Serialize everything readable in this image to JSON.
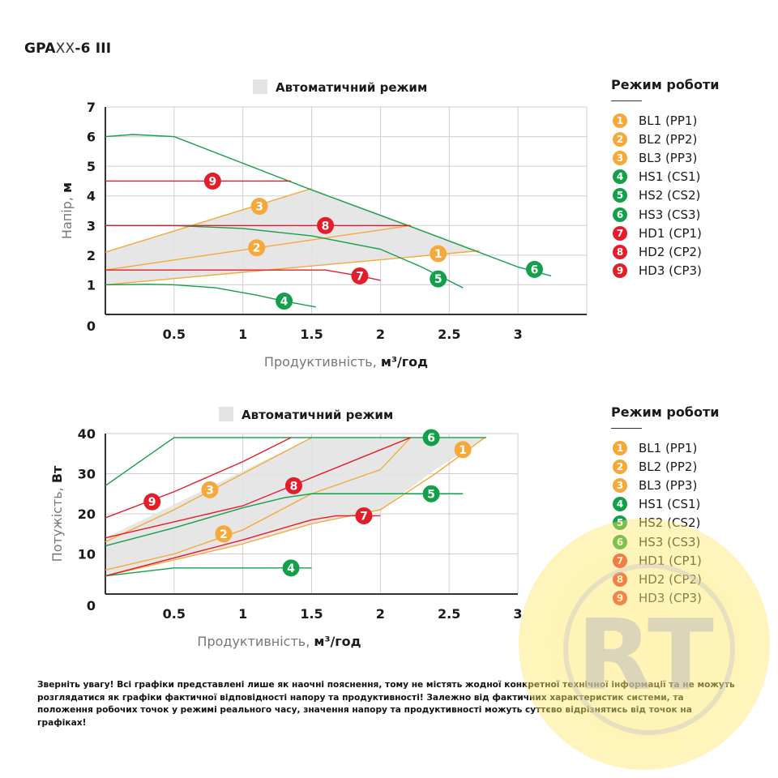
{
  "title": {
    "bold_prefix": "GPA",
    "thin_mid": "XX",
    "bold_suffix": "-6 III"
  },
  "legend": {
    "heading": "Режим роботи",
    "items": [
      {
        "num": "1",
        "label": "BL1 (PP1)",
        "color": "#F5A93A"
      },
      {
        "num": "2",
        "label": "BL2 (PP2)",
        "color": "#F5A93A"
      },
      {
        "num": "3",
        "label": "BL3 (PP3)",
        "color": "#F5A93A"
      },
      {
        "num": "4",
        "label": "HS1 (CS1)",
        "color": "#13A04A"
      },
      {
        "num": "5",
        "label": "HS2 (CS2)",
        "color": "#13A04A"
      },
      {
        "num": "6",
        "label": "HS3 (CS3)",
        "color": "#13A04A"
      },
      {
        "num": "7",
        "label": "HD1 (CP1)",
        "color": "#E31E2A"
      },
      {
        "num": "8",
        "label": "HD2 (CP2)",
        "color": "#E31E2A"
      },
      {
        "num": "9",
        "label": "HD3 (CP3)",
        "color": "#E31E2A"
      }
    ]
  },
  "notice": "Зверніть увагу! Всі графіки представлені лише як наочні пояснення, тому не містять жодної конкретної технічної інформації та не можуть розглядатися як графіки фактичної відповідності напору та продуктивності! Залежно від фактичних характеристик системи, та положення робочих точок у режимі реального часу, значення напору та продуктивності можуть суттєво відрізнятись від точок на графіках!",
  "colors": {
    "orange": "#F5A93A",
    "green": "#13A04A",
    "red": "#E31E2A",
    "auto_zone": "#E3E3E3",
    "grid": "#CFCFCF",
    "axis": "#333333"
  },
  "chart_data": [
    {
      "type": "line",
      "title": "Автоматичний режим",
      "legend_swatch_label": "Автоматичний режим",
      "xlabel_regular": "Продуктивність, ",
      "xlabel_bold": "м³/год",
      "ylabel_regular": "Напір, ",
      "ylabel_bold": "м",
      "xlim": [
        0,
        3.5
      ],
      "ylim": [
        0,
        7
      ],
      "xticks": [
        "0.5",
        "1",
        "1.5",
        "2",
        "2.5",
        "3"
      ],
      "xtick_values": [
        0.5,
        1,
        1.5,
        2,
        2.5,
        3
      ],
      "yticks": [
        "1",
        "2",
        "3",
        "4",
        "5",
        "6",
        "7"
      ],
      "ytick_values": [
        1,
        2,
        3,
        4,
        5,
        6,
        7
      ],
      "origin_label": "0",
      "grid": true,
      "auto_zone": [
        [
          0,
          1.0
        ],
        [
          0,
          2.1
        ],
        [
          1.5,
          4.25
        ],
        [
          2.22,
          3.0
        ],
        [
          2.72,
          2.15
        ],
        [
          0,
          1.0
        ]
      ],
      "series": [
        {
          "name": "BL1 (PP1)",
          "num": "1",
          "group": "orange",
          "points": [
            [
              0,
              1.0
            ],
            [
              2.72,
              2.15
            ]
          ],
          "marker": [
            2.42,
            2.05
          ]
        },
        {
          "name": "BL2 (PP2)",
          "num": "2",
          "group": "orange",
          "points": [
            [
              0,
              1.5
            ],
            [
              2.22,
              3.0
            ]
          ],
          "marker": [
            1.1,
            2.25
          ]
        },
        {
          "name": "BL3 (PP3)",
          "num": "3",
          "group": "orange",
          "points": [
            [
              0,
              2.1
            ],
            [
              1.5,
              4.25
            ]
          ],
          "marker": [
            1.12,
            3.65
          ]
        },
        {
          "name": "HS1 (CS1)",
          "num": "4",
          "group": "green",
          "points": [
            [
              0,
              1.0
            ],
            [
              0.3,
              1.02
            ],
            [
              0.5,
              1.0
            ],
            [
              0.8,
              0.9
            ],
            [
              1.1,
              0.65
            ],
            [
              1.3,
              0.45
            ],
            [
              1.53,
              0.25
            ]
          ],
          "marker": [
            1.3,
            0.45
          ]
        },
        {
          "name": "HS2 (CS2)",
          "num": "5",
          "group": "green",
          "points": [
            [
              0,
              3.0
            ],
            [
              0.5,
              3.0
            ],
            [
              1.0,
              2.9
            ],
            [
              1.5,
              2.65
            ],
            [
              2.0,
              2.2
            ],
            [
              2.3,
              1.6
            ],
            [
              2.6,
              0.9
            ]
          ],
          "marker": [
            2.42,
            1.2
          ]
        },
        {
          "name": "HS3 (CS3)",
          "num": "6",
          "group": "green",
          "points": [
            [
              0,
              6.0
            ],
            [
              0.2,
              6.07
            ],
            [
              0.5,
              6.0
            ],
            [
              1.5,
              4.2
            ],
            [
              2.2,
              3.0
            ],
            [
              3.0,
              1.6
            ],
            [
              3.24,
              1.3
            ]
          ],
          "marker": [
            3.12,
            1.52
          ]
        },
        {
          "name": "HD1 (CP1)",
          "num": "7",
          "group": "red",
          "points": [
            [
              0,
              1.5
            ],
            [
              1.6,
              1.5
            ],
            [
              1.85,
              1.3
            ],
            [
              2.0,
              1.15
            ]
          ],
          "marker": [
            1.85,
            1.3
          ]
        },
        {
          "name": "HD2 (CP2)",
          "num": "8",
          "group": "red",
          "points": [
            [
              0,
              3.0
            ],
            [
              2.22,
              3.0
            ]
          ],
          "marker": [
            1.6,
            3.0
          ]
        },
        {
          "name": "HD3 (CP3)",
          "num": "9",
          "group": "red",
          "points": [
            [
              0,
              4.5
            ],
            [
              1.35,
              4.5
            ]
          ],
          "marker": [
            0.78,
            4.5
          ]
        }
      ]
    },
    {
      "type": "line",
      "title": "Автоматичний режим",
      "legend_swatch_label": "Автоматичний режим",
      "xlabel_regular": "Продуктивність, ",
      "xlabel_bold": "м³/год",
      "ylabel_regular": "Потужість, ",
      "ylabel_bold": "Вт",
      "xlim": [
        0,
        3
      ],
      "ylim": [
        0,
        40
      ],
      "xticks": [
        "0.5",
        "1",
        "1.5",
        "2",
        "2.5",
        "3"
      ],
      "xtick_values": [
        0.5,
        1,
        1.5,
        2,
        2.5,
        3
      ],
      "yticks": [
        "10",
        "20",
        "30",
        "40"
      ],
      "ytick_values": [
        10,
        20,
        30,
        40
      ],
      "origin_label": "0",
      "grid": true,
      "auto_zone": [
        [
          0,
          4.5
        ],
        [
          0,
          14
        ],
        [
          1.5,
          39
        ],
        [
          2.76,
          39
        ],
        [
          2.4,
          31
        ],
        [
          2.0,
          21
        ],
        [
          1.5,
          17.5
        ],
        [
          1.0,
          12.5
        ],
        [
          0.5,
          8.5
        ],
        [
          0,
          4.5
        ]
      ],
      "series": [
        {
          "name": "BL1 (PP1)",
          "num": "1",
          "group": "orange",
          "points": [
            [
              0,
              4.5
            ],
            [
              0.5,
              8.5
            ],
            [
              1.0,
              12.5
            ],
            [
              1.5,
              17.5
            ],
            [
              2.0,
              21
            ],
            [
              2.4,
              30
            ],
            [
              2.76,
              39
            ]
          ],
          "marker": [
            2.6,
            36
          ]
        },
        {
          "name": "BL2 (PP2)",
          "num": "2",
          "group": "orange",
          "points": [
            [
              0,
              6
            ],
            [
              0.5,
              10
            ],
            [
              1.0,
              16
            ],
            [
              1.5,
              25
            ],
            [
              2.0,
              31
            ],
            [
              2.22,
              39
            ]
          ],
          "marker": [
            0.86,
            15
          ]
        },
        {
          "name": "BL3 (PP3)",
          "num": "3",
          "group": "orange",
          "points": [
            [
              0,
              13
            ],
            [
              0.5,
              21
            ],
            [
              1.0,
              30
            ],
            [
              1.5,
              39
            ]
          ],
          "marker": [
            0.76,
            26
          ]
        },
        {
          "name": "HS1 (CS1)",
          "num": "4",
          "group": "green",
          "points": [
            [
              0,
              4.5
            ],
            [
              0.5,
              6.5
            ],
            [
              1.5,
              6.5
            ]
          ],
          "marker": [
            1.35,
            6.5
          ]
        },
        {
          "name": "HS2 (CS2)",
          "num": "5",
          "group": "green",
          "points": [
            [
              0,
              12
            ],
            [
              0.5,
              16.5
            ],
            [
              1.0,
              21.5
            ],
            [
              1.3,
              24
            ],
            [
              1.5,
              25
            ],
            [
              2.6,
              25
            ]
          ],
          "marker": [
            2.37,
            25
          ]
        },
        {
          "name": "HS3 (CS3)",
          "num": "6",
          "group": "green",
          "points": [
            [
              0,
              27
            ],
            [
              0.5,
              39
            ],
            [
              2.77,
              39
            ]
          ],
          "marker": [
            2.37,
            39
          ]
        },
        {
          "name": "HD1 (CP1)",
          "num": "7",
          "group": "red",
          "points": [
            [
              0,
              4.5
            ],
            [
              0.5,
              9
            ],
            [
              1.0,
              13.5
            ],
            [
              1.5,
              18.5
            ],
            [
              1.68,
              19.5
            ],
            [
              2.0,
              19.5
            ]
          ],
          "marker": [
            1.88,
            19.5
          ]
        },
        {
          "name": "HD2 (CP2)",
          "num": "8",
          "group": "red",
          "points": [
            [
              0,
              14
            ],
            [
              0.5,
              18
            ],
            [
              1.0,
              22
            ],
            [
              1.5,
              29
            ],
            [
              2.22,
              39
            ]
          ],
          "marker": [
            1.37,
            27
          ]
        },
        {
          "name": "HD3 (CP3)",
          "num": "9",
          "group": "red",
          "points": [
            [
              0,
              19
            ],
            [
              0.5,
              25.5
            ],
            [
              1.0,
              33
            ],
            [
              1.35,
              39
            ]
          ],
          "marker": [
            0.34,
            23
          ]
        }
      ]
    }
  ]
}
